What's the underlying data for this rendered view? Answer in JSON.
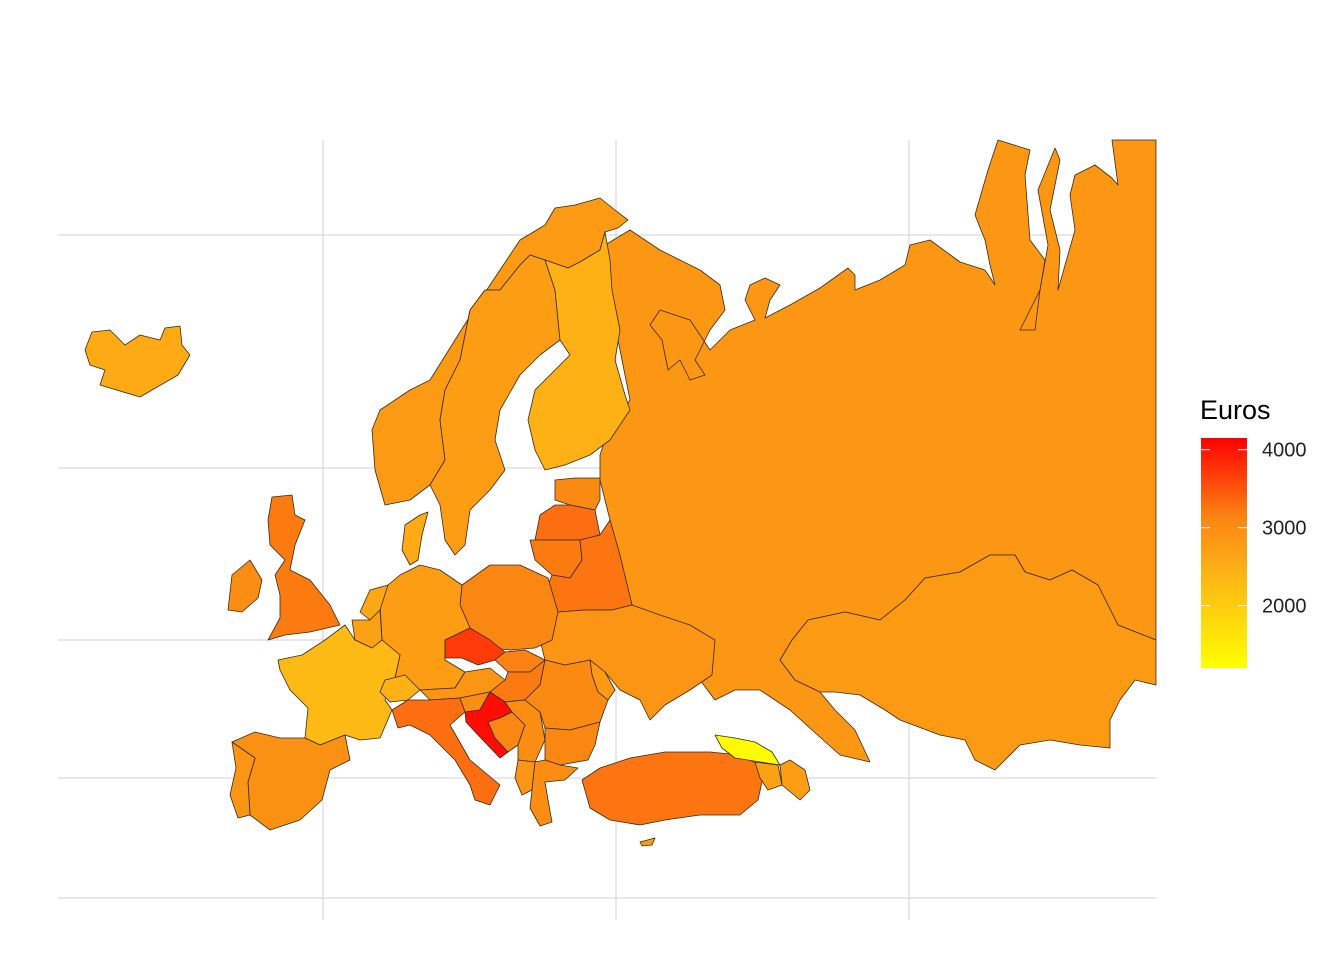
{
  "legend": {
    "title": "Euros",
    "ticks": [
      4000,
      3000,
      2000
    ],
    "range": [
      1200,
      4150
    ],
    "color_low": "#ffff00",
    "color_high": "#ff0000"
  },
  "map_data": {
    "type": "choropleth",
    "region": "Europe",
    "grid": true,
    "legend_position": "right",
    "countries": [
      {
        "name": "Russia",
        "value": 2850
      },
      {
        "name": "Kazakhstan",
        "value": 2800
      },
      {
        "name": "Norway",
        "value": 2800
      },
      {
        "name": "Sweden",
        "value": 2750
      },
      {
        "name": "Finland",
        "value": 2450
      },
      {
        "name": "Iceland",
        "value": 2550
      },
      {
        "name": "United Kingdom",
        "value": 3200
      },
      {
        "name": "Ireland",
        "value": 3000
      },
      {
        "name": "France",
        "value": 2300
      },
      {
        "name": "Spain",
        "value": 2950
      },
      {
        "name": "Portugal",
        "value": 2900
      },
      {
        "name": "Germany",
        "value": 2750
      },
      {
        "name": "Denmark",
        "value": 2550
      },
      {
        "name": "Netherlands",
        "value": 2600
      },
      {
        "name": "Belgium",
        "value": 2700
      },
      {
        "name": "Poland",
        "value": 3100
      },
      {
        "name": "Czechia",
        "value": 3700
      },
      {
        "name": "Austria",
        "value": 2900
      },
      {
        "name": "Switzerland",
        "value": 2450
      },
      {
        "name": "Italy",
        "value": 3300
      },
      {
        "name": "Croatia",
        "value": 4050
      },
      {
        "name": "Hungary",
        "value": 3200
      },
      {
        "name": "Slovakia",
        "value": 3150
      },
      {
        "name": "Slovenia",
        "value": 3000
      },
      {
        "name": "Bosnia and Herzegovina",
        "value": 3100
      },
      {
        "name": "Serbia",
        "value": 3000
      },
      {
        "name": "Romania",
        "value": 3050
      },
      {
        "name": "Moldova",
        "value": 2800
      },
      {
        "name": "Bulgaria",
        "value": 3100
      },
      {
        "name": "Greece",
        "value": 3000
      },
      {
        "name": "Albania",
        "value": 2900
      },
      {
        "name": "Ukraine",
        "value": 2900
      },
      {
        "name": "Belarus",
        "value": 3250
      },
      {
        "name": "Lithuania",
        "value": 3200
      },
      {
        "name": "Latvia",
        "value": 3300
      },
      {
        "name": "Estonia",
        "value": 3050
      },
      {
        "name": "Turkey",
        "value": 3250
      },
      {
        "name": "Georgia",
        "value": 1250
      },
      {
        "name": "Armenia",
        "value": 2700
      },
      {
        "name": "Azerbaijan",
        "value": 2750
      },
      {
        "name": "Cyprus",
        "value": 2800
      }
    ]
  }
}
